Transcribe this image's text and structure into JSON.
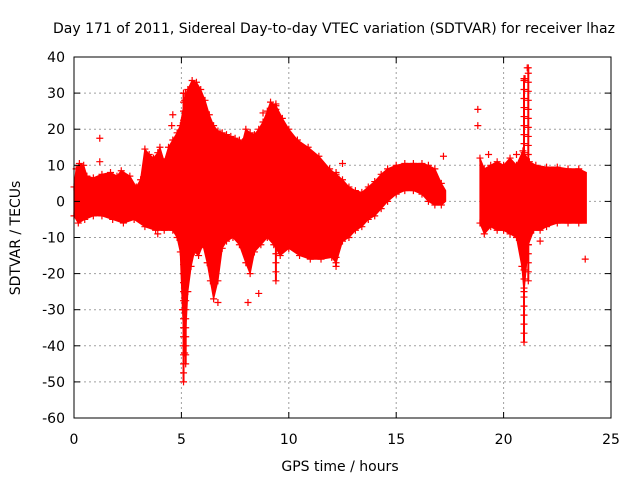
{
  "chart_data": {
    "type": "scatter",
    "title": "Day 171 of 2011, Sidereal Day-to-day VTEC variation (SDTVAR) for receiver lhaz",
    "xlabel": "GPS time / hours",
    "ylabel": "SDTVAR / TECUs",
    "xlim": [
      0,
      25
    ],
    "ylim": [
      -60,
      40
    ],
    "xticks": [
      0,
      5,
      10,
      15,
      20,
      25
    ],
    "yticks": [
      -60,
      -50,
      -40,
      -30,
      -20,
      -10,
      0,
      10,
      20,
      30,
      40
    ],
    "grid": true,
    "marker": "+",
    "series_color": "#ff0000",
    "envelope": {
      "upper": [
        [
          0.0,
          4
        ],
        [
          0.1,
          9
        ],
        [
          0.25,
          10.5
        ],
        [
          0.45,
          10
        ],
        [
          0.6,
          7
        ],
        [
          0.9,
          6.5
        ],
        [
          1.3,
          7.5
        ],
        [
          1.7,
          8
        ],
        [
          2.0,
          7
        ],
        [
          2.2,
          8.5
        ],
        [
          2.6,
          7
        ],
        [
          2.9,
          4
        ],
        [
          3.1,
          6
        ],
        [
          3.3,
          14.5
        ],
        [
          3.5,
          13
        ],
        [
          3.7,
          12
        ],
        [
          3.9,
          13.5
        ],
        [
          4.0,
          15
        ],
        [
          4.2,
          11
        ],
        [
          4.4,
          15
        ],
        [
          4.6,
          17
        ],
        [
          4.8,
          19
        ],
        [
          4.95,
          21
        ],
        [
          5.15,
          28
        ],
        [
          5.3,
          31
        ],
        [
          5.5,
          33.5
        ],
        [
          5.7,
          33
        ],
        [
          5.9,
          31
        ],
        [
          6.1,
          28
        ],
        [
          6.3,
          24
        ],
        [
          6.5,
          21
        ],
        [
          6.7,
          19.5
        ],
        [
          6.9,
          19
        ],
        [
          7.1,
          18.5
        ],
        [
          7.3,
          18
        ],
        [
          7.5,
          17.5
        ],
        [
          7.7,
          17
        ],
        [
          7.85,
          16.5
        ],
        [
          8.0,
          20
        ],
        [
          8.2,
          19
        ],
        [
          8.4,
          18.5
        ],
        [
          8.6,
          20
        ],
        [
          8.8,
          22
        ],
        [
          9.0,
          25
        ],
        [
          9.15,
          27.5
        ],
        [
          9.4,
          26.5
        ],
        [
          9.7,
          23
        ],
        [
          10.0,
          20
        ],
        [
          10.4,
          17
        ],
        [
          10.9,
          15
        ],
        [
          11.4,
          12.5
        ],
        [
          11.9,
          9
        ],
        [
          12.2,
          7.5
        ],
        [
          12.5,
          6
        ],
        [
          12.8,
          4
        ],
        [
          13.1,
          3
        ],
        [
          13.4,
          2.5
        ],
        [
          13.7,
          4
        ],
        [
          14.0,
          5.5
        ],
        [
          14.3,
          7.5
        ],
        [
          14.6,
          9
        ],
        [
          15.0,
          10
        ],
        [
          15.4,
          10.5
        ],
        [
          15.8,
          10.5
        ],
        [
          16.2,
          10.5
        ],
        [
          16.5,
          10
        ],
        [
          16.8,
          9
        ],
        [
          17.1,
          5
        ],
        [
          17.3,
          3
        ]
      ],
      "lower": [
        [
          0.0,
          -4
        ],
        [
          0.2,
          -6
        ],
        [
          0.5,
          -5
        ],
        [
          0.9,
          -4
        ],
        [
          1.3,
          -4
        ],
        [
          1.8,
          -5
        ],
        [
          2.3,
          -6
        ],
        [
          2.8,
          -5
        ],
        [
          3.3,
          -7
        ],
        [
          3.8,
          -8
        ],
        [
          4.2,
          -8
        ],
        [
          4.6,
          -8
        ],
        [
          4.8,
          -10
        ],
        [
          4.95,
          -14
        ],
        [
          5.05,
          -30
        ],
        [
          5.15,
          -42
        ],
        [
          5.3,
          -25
        ],
        [
          5.45,
          -18
        ],
        [
          5.6,
          -14
        ],
        [
          5.8,
          -15
        ],
        [
          6.0,
          -12
        ],
        [
          6.2,
          -17
        ],
        [
          6.35,
          -22
        ],
        [
          6.5,
          -27
        ],
        [
          6.7,
          -22
        ],
        [
          6.9,
          -13
        ],
        [
          7.1,
          -11
        ],
        [
          7.4,
          -10
        ],
        [
          7.7,
          -12
        ],
        [
          8.0,
          -17
        ],
        [
          8.2,
          -20
        ],
        [
          8.4,
          -14
        ],
        [
          8.7,
          -12
        ],
        [
          9.0,
          -10
        ],
        [
          9.3,
          -12
        ],
        [
          9.6,
          -15
        ],
        [
          10.0,
          -13
        ],
        [
          10.5,
          -15
        ],
        [
          11.0,
          -16
        ],
        [
          11.5,
          -16
        ],
        [
          12.0,
          -15.5
        ],
        [
          12.2,
          -17
        ],
        [
          12.5,
          -11
        ],
        [
          12.8,
          -10
        ],
        [
          13.1,
          -8
        ],
        [
          13.4,
          -7
        ],
        [
          13.7,
          -5
        ],
        [
          14.0,
          -4
        ],
        [
          14.3,
          -2
        ],
        [
          14.6,
          0
        ],
        [
          15.0,
          2
        ],
        [
          15.4,
          3
        ],
        [
          15.8,
          3
        ],
        [
          16.2,
          2
        ],
        [
          16.5,
          0
        ],
        [
          16.8,
          -1
        ],
        [
          17.1,
          -1
        ],
        [
          17.3,
          0
        ]
      ],
      "upper2": [
        [
          18.9,
          12
        ],
        [
          19.1,
          9
        ],
        [
          19.4,
          10
        ],
        [
          19.7,
          11
        ],
        [
          20.0,
          10
        ],
        [
          20.3,
          12
        ],
        [
          20.6,
          10
        ],
        [
          20.9,
          14
        ],
        [
          21.2,
          11
        ],
        [
          21.5,
          10
        ],
        [
          22.0,
          9.5
        ],
        [
          22.5,
          9.5
        ],
        [
          23.0,
          9
        ],
        [
          23.5,
          9
        ],
        [
          23.85,
          8
        ]
      ],
      "lower2": [
        [
          18.9,
          -6
        ],
        [
          19.1,
          -9
        ],
        [
          19.4,
          -7
        ],
        [
          19.7,
          -8
        ],
        [
          20.0,
          -8
        ],
        [
          20.3,
          -9
        ],
        [
          20.6,
          -10
        ],
        [
          20.85,
          -18
        ],
        [
          20.95,
          -25
        ],
        [
          21.15,
          -12
        ],
        [
          21.4,
          -8
        ],
        [
          21.7,
          -8
        ],
        [
          22.0,
          -7
        ],
        [
          22.5,
          -6
        ],
        [
          23.0,
          -6
        ],
        [
          23.5,
          -6
        ],
        [
          23.85,
          -6
        ]
      ]
    },
    "spikes": [
      {
        "x": 5.1,
        "low": -50,
        "high": 30
      },
      {
        "x": 5.2,
        "low": -45,
        "high": 30
      },
      {
        "x": 20.95,
        "low": -39,
        "high": 34
      },
      {
        "x": 21.15,
        "low": -22,
        "high": 37
      },
      {
        "x": 9.4,
        "low": -22,
        "high": 27
      },
      {
        "x": 12.2,
        "low": -18,
        "high": 8
      }
    ],
    "outliers": [
      {
        "x": 1.2,
        "y": 17.5
      },
      {
        "x": 1.2,
        "y": 11
      },
      {
        "x": 3.9,
        "y": -9
      },
      {
        "x": 4.6,
        "y": 24
      },
      {
        "x": 4.55,
        "y": 21
      },
      {
        "x": 6.7,
        "y": -28
      },
      {
        "x": 8.1,
        "y": -28
      },
      {
        "x": 8.6,
        "y": -25.5
      },
      {
        "x": 8.8,
        "y": 24.5
      },
      {
        "x": 12.5,
        "y": 10.5
      },
      {
        "x": 17.2,
        "y": 12.5
      },
      {
        "x": 18.8,
        "y": 25.5
      },
      {
        "x": 18.8,
        "y": 21
      },
      {
        "x": 19.3,
        "y": 13
      },
      {
        "x": 20.6,
        "y": 13
      },
      {
        "x": 21.1,
        "y": 37
      },
      {
        "x": 21.0,
        "y": 34
      },
      {
        "x": 21.7,
        "y": -11
      },
      {
        "x": 23.8,
        "y": -16
      }
    ]
  }
}
